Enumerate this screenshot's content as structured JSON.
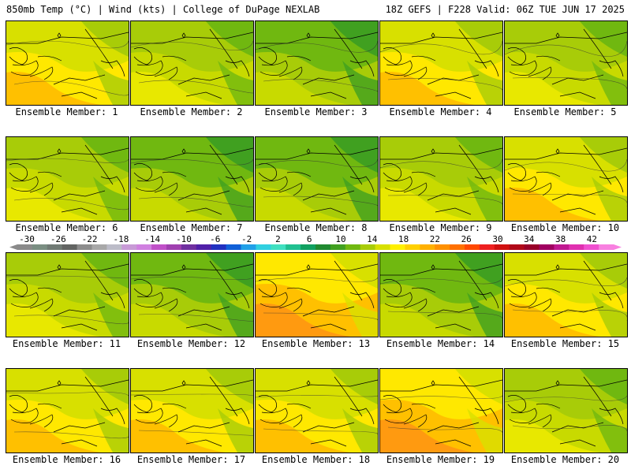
{
  "header": {
    "left": "850mb Temp (°C) | Wind (kts) | College of DuPage NEXLAB",
    "right": "18Z GEFS | F228 Valid: 06Z TUE JUN 17 2025"
  },
  "panel_label_prefix": "Ensemble Member: ",
  "members": [
    {
      "label": "Ensemble Member: 1",
      "tone": "warm"
    },
    {
      "label": "Ensemble Member: 2",
      "tone": "mild"
    },
    {
      "label": "Ensemble Member: 3",
      "tone": "cool"
    },
    {
      "label": "Ensemble Member: 4",
      "tone": "warm"
    },
    {
      "label": "Ensemble Member: 5",
      "tone": "mild"
    },
    {
      "label": "Ensemble Member: 6",
      "tone": "mild"
    },
    {
      "label": "Ensemble Member: 7",
      "tone": "cool"
    },
    {
      "label": "Ensemble Member: 8",
      "tone": "cool"
    },
    {
      "label": "Ensemble Member: 9",
      "tone": "mild"
    },
    {
      "label": "Ensemble Member: 10",
      "tone": "warm"
    },
    {
      "label": "Ensemble Member: 11",
      "tone": "mild"
    },
    {
      "label": "Ensemble Member: 12",
      "tone": "cool"
    },
    {
      "label": "Ensemble Member: 13",
      "tone": "hot"
    },
    {
      "label": "Ensemble Member: 14",
      "tone": "cool"
    },
    {
      "label": "Ensemble Member: 15",
      "tone": "warm"
    },
    {
      "label": "Ensemble Member: 16",
      "tone": "warm"
    },
    {
      "label": "Ensemble Member: 17",
      "tone": "warm"
    },
    {
      "label": "Ensemble Member: 18",
      "tone": "warm"
    },
    {
      "label": "Ensemble Member: 19",
      "tone": "hot"
    },
    {
      "label": "Ensemble Member: 20",
      "tone": "mild"
    }
  ],
  "colorbar": {
    "unit": "°C",
    "ticks": [
      "-30",
      "-26",
      "-22",
      "-18",
      "-14",
      "-10",
      "-6",
      "-2",
      "2",
      "6",
      "10",
      "14",
      "18",
      "22",
      "26",
      "30",
      "34",
      "38",
      "42"
    ],
    "colors": [
      "#8a8a8a",
      "#7a8e82",
      "#707a74",
      "#626462",
      "#8c8c8c",
      "#a8a8a8",
      "#bcbcc8",
      "#c89ad6",
      "#d080e0",
      "#c050c8",
      "#a040b0",
      "#7030a0",
      "#5020a8",
      "#2030c0",
      "#1060d8",
      "#20a0e8",
      "#30d0e0",
      "#40e0c0",
      "#20c090",
      "#10a060",
      "#208a30",
      "#40a020",
      "#70b810",
      "#a8cc08",
      "#d8e000",
      "#fff000",
      "#ffd000",
      "#ffb000",
      "#ff9000",
      "#ff7000",
      "#ff4800",
      "#ee2020",
      "#d01010",
      "#b00818",
      "#980028",
      "#a00060",
      "#c01890",
      "#e030b0",
      "#f050d0",
      "#f880e0"
    ]
  }
}
